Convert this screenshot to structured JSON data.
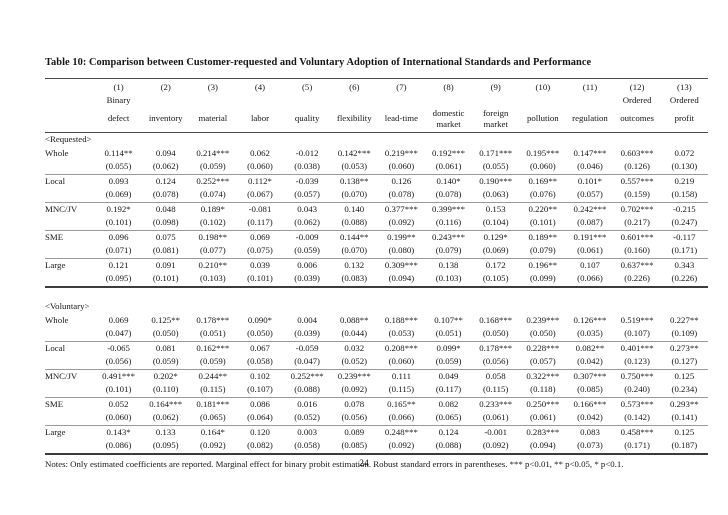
{
  "page": {
    "number": "24"
  },
  "table": {
    "title": "Table 10: Comparison between Customer-requested and Voluntary Adoption of International Standards and Performance",
    "col_numbers": [
      "(1)",
      "(2)",
      "(3)",
      "(4)",
      "(5)",
      "(6)",
      "(7)",
      "(8)",
      "(9)",
      "(10)",
      "(11)",
      "(12)",
      "(13)"
    ],
    "col_top_labels": [
      "Binary",
      "",
      "",
      "",
      "",
      "",
      "",
      "",
      "",
      "",
      "",
      "Ordered",
      "Ordered"
    ],
    "col_names": [
      "defect",
      "inventory",
      "material",
      "labor",
      "quality",
      "flexibility",
      "lead-time",
      "domestic market",
      "foreign market",
      "pollution",
      "regulation",
      "outcomes",
      "profit"
    ],
    "sections": [
      {
        "label": "<Requested>",
        "rows": [
          {
            "label": "Whole",
            "coefs": [
              "0.114**",
              "0.094",
              "0.214***",
              "0.062",
              "-0.012",
              "0.142***",
              "0.219***",
              "0.192***",
              "0.171***",
              "0.195***",
              "0.147***",
              "0.603***",
              "0.072"
            ],
            "ses": [
              "(0.055)",
              "(0.062)",
              "(0.059)",
              "(0.060)",
              "(0.038)",
              "(0.053)",
              "(0.060)",
              "(0.061)",
              "(0.055)",
              "(0.060)",
              "(0.046)",
              "(0.126)",
              "(0.130)"
            ]
          },
          {
            "label": "Local",
            "coefs": [
              "0.093",
              "0.124",
              "0.252***",
              "0.112*",
              "-0.039",
              "0.138**",
              "0.126",
              "0.140*",
              "0.190***",
              "0.169**",
              "0.101*",
              "0.557***",
              "0.219"
            ],
            "ses": [
              "(0.069)",
              "(0.078)",
              "(0.074)",
              "(0.067)",
              "(0.057)",
              "(0.070)",
              "(0.078)",
              "(0.078)",
              "(0.063)",
              "(0.076)",
              "(0.057)",
              "(0.159)",
              "(0.158)"
            ]
          },
          {
            "label": "MNC/JV",
            "coefs": [
              "0.192*",
              "0.048",
              "0.189*",
              "-0.081",
              "0.043",
              "0.140",
              "0.377***",
              "0.399***",
              "0.153",
              "0.220**",
              "0.242***",
              "0.702***",
              "-0.215"
            ],
            "ses": [
              "(0.101)",
              "(0.098)",
              "(0.102)",
              "(0.117)",
              "(0.062)",
              "(0.088)",
              "(0.092)",
              "(0.116)",
              "(0.104)",
              "(0.101)",
              "(0.087)",
              "(0.217)",
              "(0.247)"
            ]
          },
          {
            "label": "SME",
            "coefs": [
              "0.096",
              "0.075",
              "0.198**",
              "0.069",
              "-0.009",
              "0.144**",
              "0.199**",
              "0.243***",
              "0.129*",
              "0.189**",
              "0.191***",
              "0.601***",
              "-0.117"
            ],
            "ses": [
              "(0.071)",
              "(0.081)",
              "(0.077)",
              "(0.075)",
              "(0.059)",
              "(0.070)",
              "(0.080)",
              "(0.079)",
              "(0.069)",
              "(0.079)",
              "(0.061)",
              "(0.160)",
              "(0.171)"
            ]
          },
          {
            "label": "Large",
            "coefs": [
              "0.121",
              "0.091",
              "0.210**",
              "0.039",
              "0.006",
              "0.132",
              "0.309***",
              "0.138",
              "0.172",
              "0.196**",
              "0.107",
              "0.637***",
              "0.343"
            ],
            "ses": [
              "(0.095)",
              "(0.101)",
              "(0.103)",
              "(0.101)",
              "(0.039)",
              "(0.083)",
              "(0.094)",
              "(0.103)",
              "(0.105)",
              "(0.099)",
              "(0.066)",
              "(0.226)",
              "(0.226)"
            ]
          }
        ]
      },
      {
        "label": "<Voluntary>",
        "rows": [
          {
            "label": "Whole",
            "coefs": [
              "0.069",
              "0.125**",
              "0.178***",
              "0.090*",
              "0.004",
              "0.088**",
              "0.188***",
              "0.107**",
              "0.168***",
              "0.239***",
              "0.126***",
              "0.519***",
              "0.227**"
            ],
            "ses": [
              "(0.047)",
              "(0.050)",
              "(0.051)",
              "(0.050)",
              "(0.039)",
              "(0.044)",
              "(0.053)",
              "(0.051)",
              "(0.050)",
              "(0.050)",
              "(0.035)",
              "(0.107)",
              "(0.109)"
            ]
          },
          {
            "label": "Local",
            "coefs": [
              "-0.065",
              "0.081",
              "0.162***",
              "0.067",
              "-0.059",
              "0.032",
              "0.208***",
              "0.099*",
              "0.178***",
              "0.228***",
              "0.082**",
              "0.401***",
              "0.273**"
            ],
            "ses": [
              "(0.056)",
              "(0.059)",
              "(0.059)",
              "(0.058)",
              "(0.047)",
              "(0.052)",
              "(0.060)",
              "(0.059)",
              "(0.056)",
              "(0.057)",
              "(0.042)",
              "(0.123)",
              "(0.127)"
            ]
          },
          {
            "label": "MNC/JV",
            "coefs": [
              "0.491***",
              "0.202*",
              "0.244**",
              "0.102",
              "0.252***",
              "0.239***",
              "0.111",
              "0.049",
              "0.058",
              "0.322***",
              "0.307***",
              "0.750***",
              "0.125"
            ],
            "ses": [
              "(0.101)",
              "(0.110)",
              "(0.115)",
              "(0.107)",
              "(0.088)",
              "(0.092)",
              "(0.115)",
              "(0.117)",
              "(0.115)",
              "(0.118)",
              "(0.085)",
              "(0.240)",
              "(0.234)"
            ]
          },
          {
            "label": "SME",
            "coefs": [
              "0.052",
              "0.164***",
              "0.181***",
              "0.086",
              "0.016",
              "0.078",
              "0.165**",
              "0.082",
              "0.233***",
              "0.250***",
              "0.166***",
              "0.573***",
              "0.293**"
            ],
            "ses": [
              "(0.060)",
              "(0.062)",
              "(0.065)",
              "(0.064)",
              "(0.052)",
              "(0.056)",
              "(0.066)",
              "(0.065)",
              "(0.061)",
              "(0.061)",
              "(0.042)",
              "(0.142)",
              "(0.141)"
            ]
          },
          {
            "label": "Large",
            "coefs": [
              "0.143*",
              "0.133",
              "0.164*",
              "0.120",
              "0.003",
              "0.089",
              "0.248***",
              "0.124",
              "-0.001",
              "0.283***",
              "0.083",
              "0.458***",
              "0.125"
            ],
            "ses": [
              "(0.086)",
              "(0.095)",
              "(0.092)",
              "(0.082)",
              "(0.058)",
              "(0.085)",
              "(0.092)",
              "(0.088)",
              "(0.092)",
              "(0.094)",
              "(0.073)",
              "(0.171)",
              "(0.187)"
            ]
          }
        ]
      }
    ],
    "notes": "Notes: Only estimated coefficients are reported. Marginal effect for binary probit estimation. Robust standard errors in parentheses. *** p<0.01, ** p<0.05, * p<0.1."
  }
}
